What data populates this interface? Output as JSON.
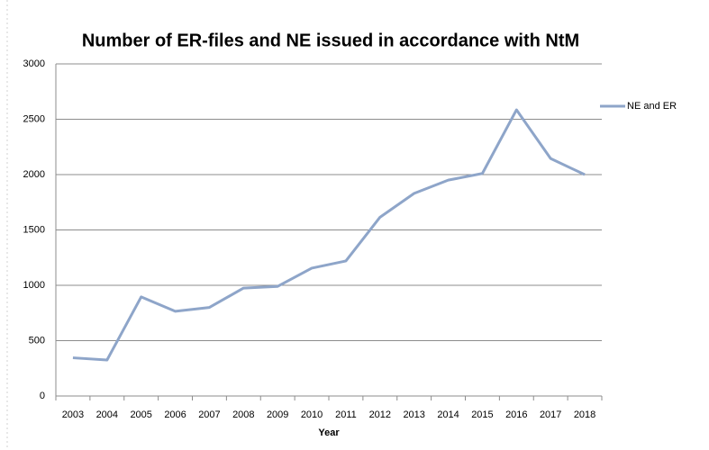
{
  "chart_data": {
    "type": "line",
    "title": "Number of ER-files and NE issued in accordance with NtM",
    "x_label": "Year",
    "categories": [
      "2003",
      "2004",
      "2005",
      "2006",
      "2007",
      "2008",
      "2009",
      "2010",
      "2011",
      "2012",
      "2013",
      "2014",
      "2015",
      "2016",
      "2017",
      "2018"
    ],
    "series": [
      {
        "name": "NE and ER",
        "color": "#8ea5c9",
        "values": [
          345,
          325,
          895,
          765,
          800,
          975,
          990,
          1155,
          1220,
          1615,
          1830,
          1950,
          2010,
          2585,
          2145,
          2000
        ]
      }
    ],
    "ylim": [
      0,
      3000
    ],
    "yticks": [
      0,
      500,
      1000,
      1500,
      2000,
      2500,
      3000
    ],
    "grid": true,
    "legend": "right"
  }
}
